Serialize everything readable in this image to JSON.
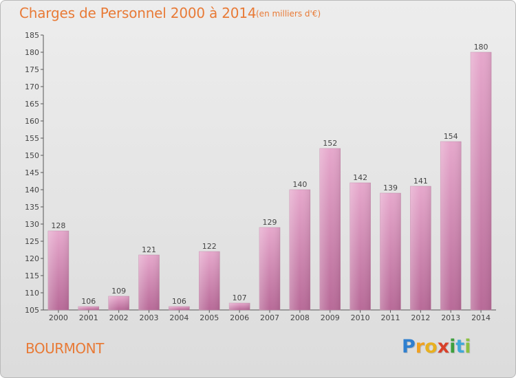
{
  "header": {
    "title": "Charges de Personnel 2000 à 2014",
    "unit": "(en milliers d'€)"
  },
  "commune": "BOURMONT",
  "logo": {
    "letters": [
      "P",
      "r",
      "o",
      "x",
      "i",
      "t",
      "i"
    ],
    "colors": [
      "#2f7fcf",
      "#f0a020",
      "#e8b020",
      "#d8402a",
      "#3ea03e",
      "#40a8d8",
      "#8cc040"
    ]
  },
  "chart_data": {
    "type": "bar",
    "title": "Charges de Personnel 2000 à 2014",
    "subtitle": "(en milliers d'€)",
    "categories": [
      "2000",
      "2001",
      "2002",
      "2003",
      "2004",
      "2005",
      "2006",
      "2007",
      "2008",
      "2009",
      "2010",
      "2011",
      "2012",
      "2013",
      "2014"
    ],
    "values": [
      128,
      106,
      109,
      121,
      106,
      122,
      107,
      129,
      140,
      152,
      142,
      139,
      141,
      154,
      180
    ],
    "ylim": [
      105,
      185
    ],
    "yticks": [
      105,
      110,
      115,
      120,
      125,
      130,
      135,
      140,
      145,
      150,
      155,
      160,
      165,
      170,
      175,
      180,
      185
    ],
    "grid": false,
    "bar_color": "#d88ab6"
  }
}
